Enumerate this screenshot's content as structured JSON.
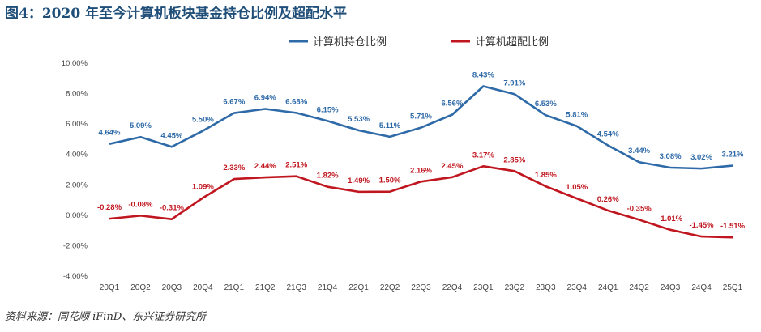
{
  "title": "图4：2020 年至今计算机板块基金持仓比例及超配水平",
  "source": "资料来源：同花顺 iFinD、东兴证券研究所",
  "chart_data": {
    "type": "line",
    "title": "图4：2020 年至今计算机板块基金持仓比例及超配水平",
    "xlabel": "",
    "ylabel": "",
    "categories": [
      "20Q1",
      "20Q2",
      "20Q3",
      "20Q4",
      "21Q1",
      "21Q2",
      "21Q3",
      "21Q4",
      "22Q1",
      "22Q2",
      "22Q3",
      "22Q4",
      "23Q1",
      "23Q2",
      "23Q3",
      "23Q4",
      "24Q1",
      "24Q2",
      "24Q3",
      "24Q4",
      "25Q1"
    ],
    "ylim": [
      -4,
      10
    ],
    "yticks": [
      -4,
      -2,
      0,
      2,
      4,
      6,
      8,
      10
    ],
    "ytick_labels": [
      "-4.00%",
      "-2.00%",
      "0.00%",
      "2.00%",
      "4.00%",
      "6.00%",
      "8.00%",
      "10.00%"
    ],
    "grid": false,
    "legend_position": "top-center",
    "series": [
      {
        "name": "计算机持仓比例",
        "color": "#2e6aa8",
        "values": [
          4.64,
          5.09,
          4.45,
          5.5,
          6.67,
          6.94,
          6.68,
          6.15,
          5.53,
          5.11,
          5.71,
          6.56,
          8.43,
          7.91,
          6.53,
          5.81,
          4.54,
          3.44,
          3.08,
          3.02,
          3.21
        ],
        "labels": [
          "4.64%",
          "5.09%",
          "4.45%",
          "5.50%",
          "6.67%",
          "6.94%",
          "6.68%",
          "6.15%",
          "5.53%",
          "5.11%",
          "5.71%",
          "6.56%",
          "8.43%",
          "7.91%",
          "6.53%",
          "5.81%",
          "4.54%",
          "3.44%",
          "3.08%",
          "3.02%",
          "3.21%"
        ]
      },
      {
        "name": "计算机超配比例",
        "color": "#c0161f",
        "values": [
          -0.28,
          -0.08,
          -0.31,
          1.09,
          2.33,
          2.44,
          2.51,
          1.82,
          1.49,
          1.5,
          2.16,
          2.45,
          3.17,
          2.85,
          1.85,
          1.05,
          0.26,
          -0.35,
          -1.01,
          -1.45,
          -1.51
        ],
        "labels": [
          "-0.28%",
          "-0.08%",
          "-0.31%",
          "1.09%",
          "2.33%",
          "2.44%",
          "2.51%",
          "1.82%",
          "1.49%",
          "1.50%",
          "2.16%",
          "2.45%",
          "3.17%",
          "2.85%",
          "1.85%",
          "1.05%",
          "0.26%",
          "-0.35%",
          "-1.01%",
          "-1.45%",
          "-1.51%"
        ]
      }
    ]
  }
}
